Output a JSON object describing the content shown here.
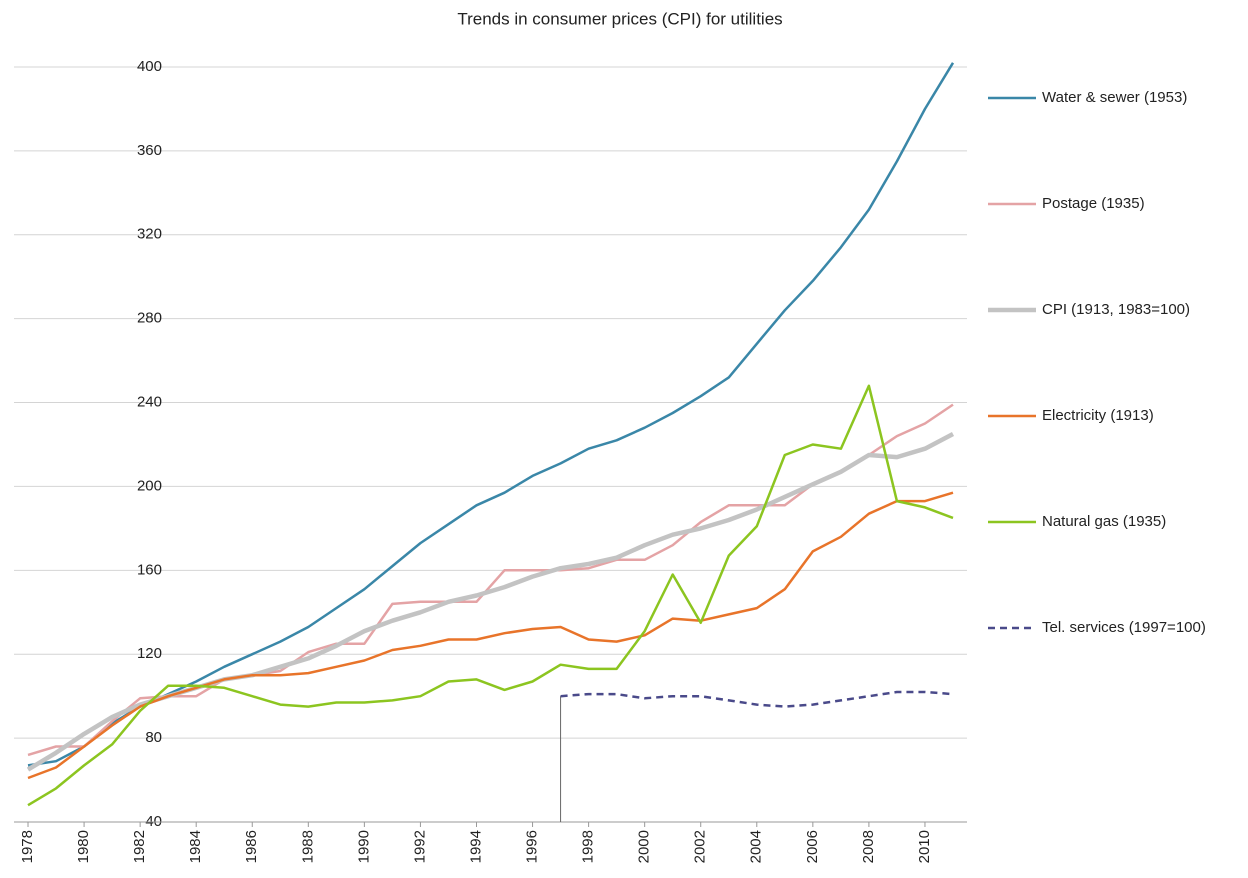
{
  "chart_data": {
    "type": "line",
    "title": "Trends in consumer prices (CPI) for utilities",
    "x": [
      1978,
      1979,
      1980,
      1981,
      1982,
      1983,
      1984,
      1985,
      1986,
      1987,
      1988,
      1989,
      1990,
      1991,
      1992,
      1993,
      1994,
      1995,
      1996,
      1997,
      1998,
      1999,
      2000,
      2001,
      2002,
      2003,
      2004,
      2005,
      2006,
      2007,
      2008,
      2009,
      2010,
      2011
    ],
    "xlim": [
      1977.5,
      2011.5
    ],
    "xticks": [
      1978,
      1980,
      1982,
      1984,
      1986,
      1988,
      1990,
      1992,
      1994,
      1996,
      1998,
      2000,
      2002,
      2004,
      2006,
      2008,
      2010
    ],
    "ylim": [
      40,
      410
    ],
    "yticks": [
      40,
      80,
      120,
      160,
      200,
      240,
      280,
      320,
      360,
      400
    ],
    "grid": true,
    "series": [
      {
        "name": "Water & sewer (1953)",
        "color": "#3a87a8",
        "values": [
          67,
          69,
          76,
          87,
          95,
          101,
          107,
          114,
          120,
          126,
          133,
          142,
          151,
          162,
          173,
          182,
          191,
          197,
          205,
          211,
          218,
          222,
          228,
          235,
          243,
          252,
          268,
          284,
          298,
          314,
          332,
          355,
          380,
          402
        ]
      },
      {
        "name": "Postage (1935)",
        "color": "#e4a3a5",
        "values": [
          72,
          76,
          76,
          88,
          99,
          100,
          100,
          108,
          110,
          112,
          121,
          125,
          125,
          144,
          145,
          145,
          145,
          160,
          160,
          160,
          161,
          165,
          165,
          172,
          183,
          191,
          191,
          191,
          201,
          207,
          215,
          224,
          230,
          239
        ]
      },
      {
        "name": "CPI (1913, 1983=100)",
        "color": "#c3c3c3",
        "values": [
          65,
          73,
          82,
          90,
          96,
          100,
          104,
          108,
          110,
          114,
          118,
          124,
          131,
          136,
          140,
          145,
          148,
          152,
          157,
          161,
          163,
          166,
          172,
          177,
          180,
          184,
          189,
          195,
          201,
          207,
          215,
          214,
          218,
          225
        ]
      },
      {
        "name": "Electricity (1913)",
        "color": "#e8742a",
        "values": [
          61,
          66,
          76,
          86,
          95,
          100,
          104,
          108,
          110,
          110,
          111,
          114,
          117,
          122,
          124,
          127,
          127,
          130,
          132,
          133,
          127,
          126,
          129,
          137,
          136,
          139,
          142,
          151,
          169,
          176,
          187,
          193,
          193,
          197
        ]
      },
      {
        "name": "Natural gas (1935)",
        "color": "#8cc520",
        "values": [
          48,
          56,
          67,
          77,
          93,
          105,
          105,
          104,
          100,
          96,
          95,
          97,
          97,
          98,
          100,
          107,
          108,
          103,
          107,
          115,
          113,
          113,
          131,
          158,
          135,
          167,
          181,
          215,
          220,
          218,
          248,
          193,
          190,
          185
        ]
      },
      {
        "name": "Tel. services (1997=100)",
        "color": "#4a4a8a",
        "dashed": true,
        "values": [
          null,
          null,
          null,
          null,
          null,
          null,
          null,
          null,
          null,
          null,
          null,
          null,
          null,
          null,
          null,
          null,
          null,
          null,
          null,
          100,
          101,
          101,
          99,
          100,
          100,
          98,
          96,
          95,
          96,
          98,
          100,
          102,
          102,
          101
        ]
      }
    ]
  }
}
